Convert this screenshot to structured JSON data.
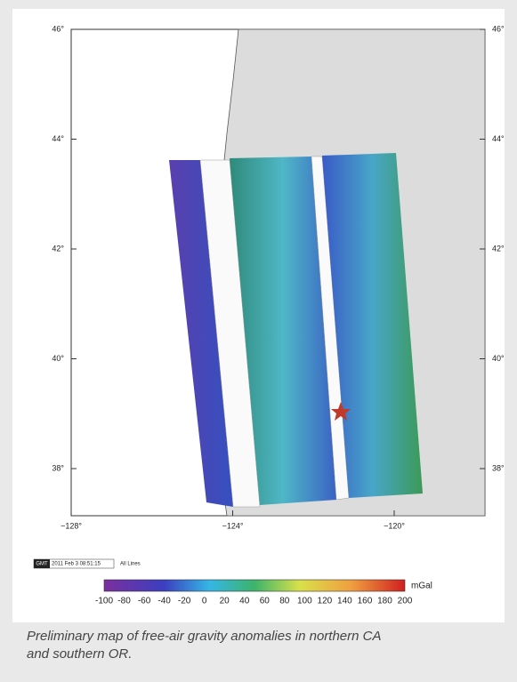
{
  "map": {
    "lat_ticks": [
      "46°",
      "44°",
      "42°",
      "40°",
      "38°"
    ],
    "lon_ticks": [
      "−128°",
      "−124°",
      "−120°"
    ]
  },
  "stamp": {
    "logo": "GMT",
    "time": "2011 Feb 3 08:51:15",
    "label": "All Lines"
  },
  "colorbar": {
    "ticks": [
      -100,
      -80,
      -60,
      -40,
      -20,
      0,
      20,
      40,
      60,
      80,
      100,
      120,
      140,
      160,
      180,
      200
    ],
    "unit": "mGal"
  },
  "caption": "Preliminary map of free-air gravity anomalies in northern CA and southern OR."
}
